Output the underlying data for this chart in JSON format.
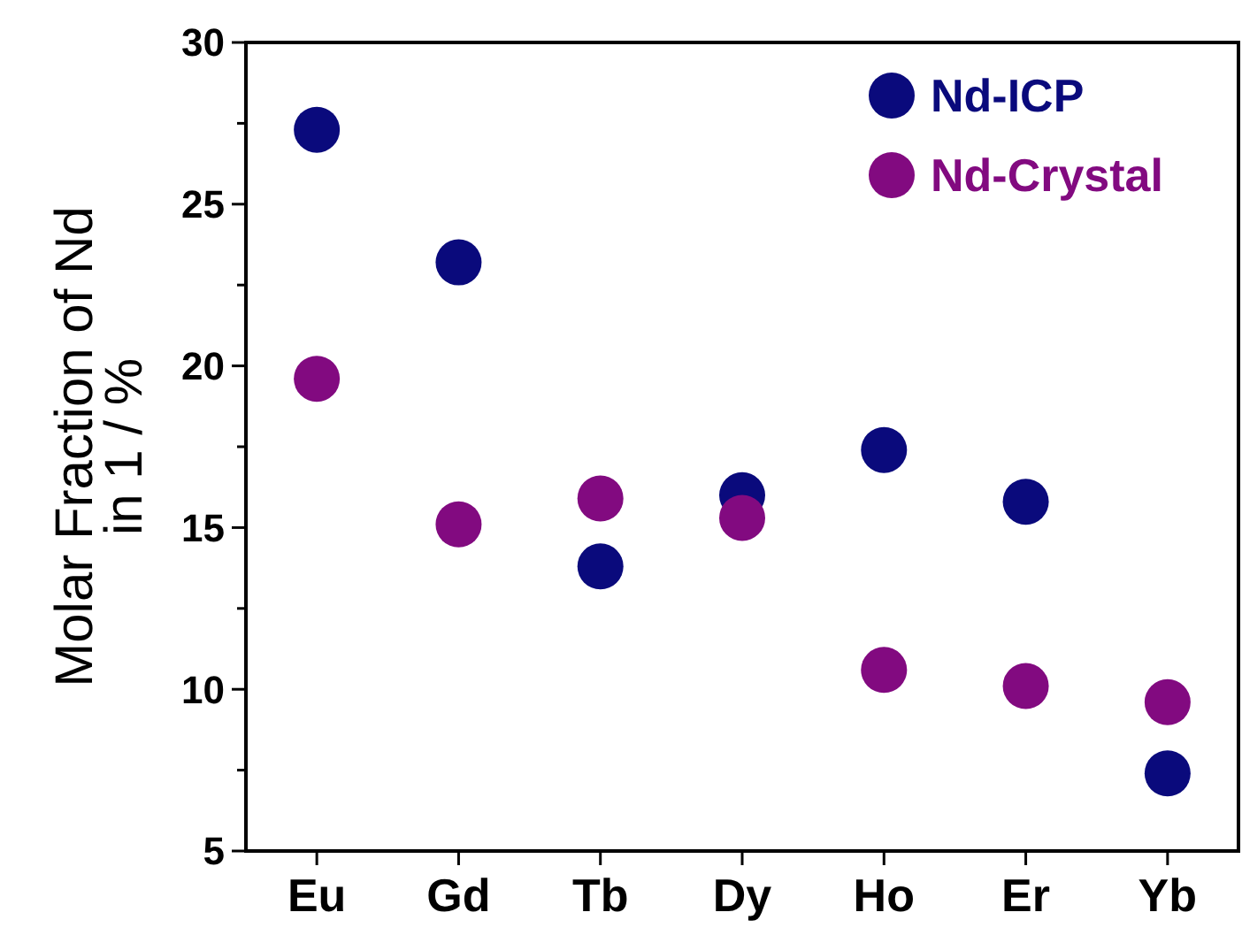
{
  "chart_data": {
    "type": "scatter",
    "ylabel": "Molar Fraction of Nd\nin 1 / %",
    "categories": [
      "Eu",
      "Gd",
      "Tb",
      "Dy",
      "Ho",
      "Er",
      "Yb"
    ],
    "series": [
      {
        "name": "Nd-ICP",
        "color": "#0a0a7c",
        "values": [
          27.3,
          23.2,
          13.8,
          16.0,
          17.4,
          15.8,
          7.4
        ]
      },
      {
        "name": "Nd-Crystal",
        "color": "#820a80",
        "values": [
          19.6,
          15.1,
          15.9,
          15.3,
          10.6,
          10.1,
          9.6
        ]
      }
    ],
    "ylim": [
      5,
      30
    ],
    "yticks": [
      5,
      {
        "value": 7.5,
        "label": null
      },
      10,
      {
        "value": 12.5,
        "label": null
      },
      15,
      {
        "value": 17.5,
        "label": null
      },
      20,
      {
        "value": 22.5,
        "label": null
      },
      25,
      {
        "value": 27.5,
        "label": null
      },
      30
    ],
    "marker": "circle",
    "legend": "top right",
    "grid": false
  }
}
